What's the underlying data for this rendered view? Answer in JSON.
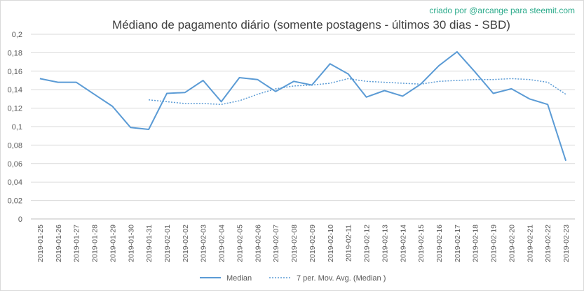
{
  "credit": "criado por @arcange para steemit.com",
  "chart_data": {
    "type": "line",
    "title": "Médiano de pagamento diário (somente postagens - últimos 30 dias - SBD)",
    "xlabel": "",
    "ylabel": "",
    "ylim": [
      0,
      0.2
    ],
    "yticks": [
      "0",
      "0,02",
      "0,04",
      "0,06",
      "0,08",
      "0,1",
      "0,12",
      "0,14",
      "0,16",
      "0,18",
      "0,2"
    ],
    "grid": true,
    "legend_position": "bottom",
    "categories": [
      "2019-01-25",
      "2019-01-26",
      "2019-01-27",
      "2019-01-28",
      "2019-01-29",
      "2019-01-30",
      "2019-01-31",
      "2019-02-01",
      "2019-02-02",
      "2019-02-03",
      "2019-02-04",
      "2019-02-05",
      "2019-02-06",
      "2019-02-07",
      "2019-02-08",
      "2019-02-09",
      "2019-02-10",
      "2019-02-11",
      "2019-02-12",
      "2019-02-13",
      "2019-02-14",
      "2019-02-15",
      "2019-02-16",
      "2019-02-17",
      "2019-02-18",
      "2019-02-19",
      "2019-02-20",
      "2019-02-21",
      "2019-02-22",
      "2019-02-23"
    ],
    "series": [
      {
        "name": "Median",
        "style": "solid",
        "color": "#5b9bd5",
        "values": [
          0.152,
          0.148,
          0.148,
          0.135,
          0.122,
          0.099,
          0.097,
          0.136,
          0.137,
          0.15,
          0.127,
          0.153,
          0.151,
          0.138,
          0.149,
          0.145,
          0.168,
          0.157,
          0.132,
          0.139,
          0.133,
          0.146,
          0.166,
          0.181,
          0.159,
          0.136,
          0.141,
          0.13,
          0.124,
          0.063
        ]
      },
      {
        "name": "7 per. Mov. Avg. (Median )",
        "style": "dotted",
        "color": "#5b9bd5",
        "values": [
          null,
          null,
          null,
          null,
          null,
          null,
          0.129,
          0.127,
          0.125,
          0.125,
          0.124,
          0.128,
          0.135,
          0.141,
          0.144,
          0.145,
          0.147,
          0.152,
          0.149,
          0.148,
          0.147,
          0.146,
          0.149,
          0.15,
          0.151,
          0.151,
          0.152,
          0.151,
          0.148,
          0.135
        ]
      }
    ]
  }
}
